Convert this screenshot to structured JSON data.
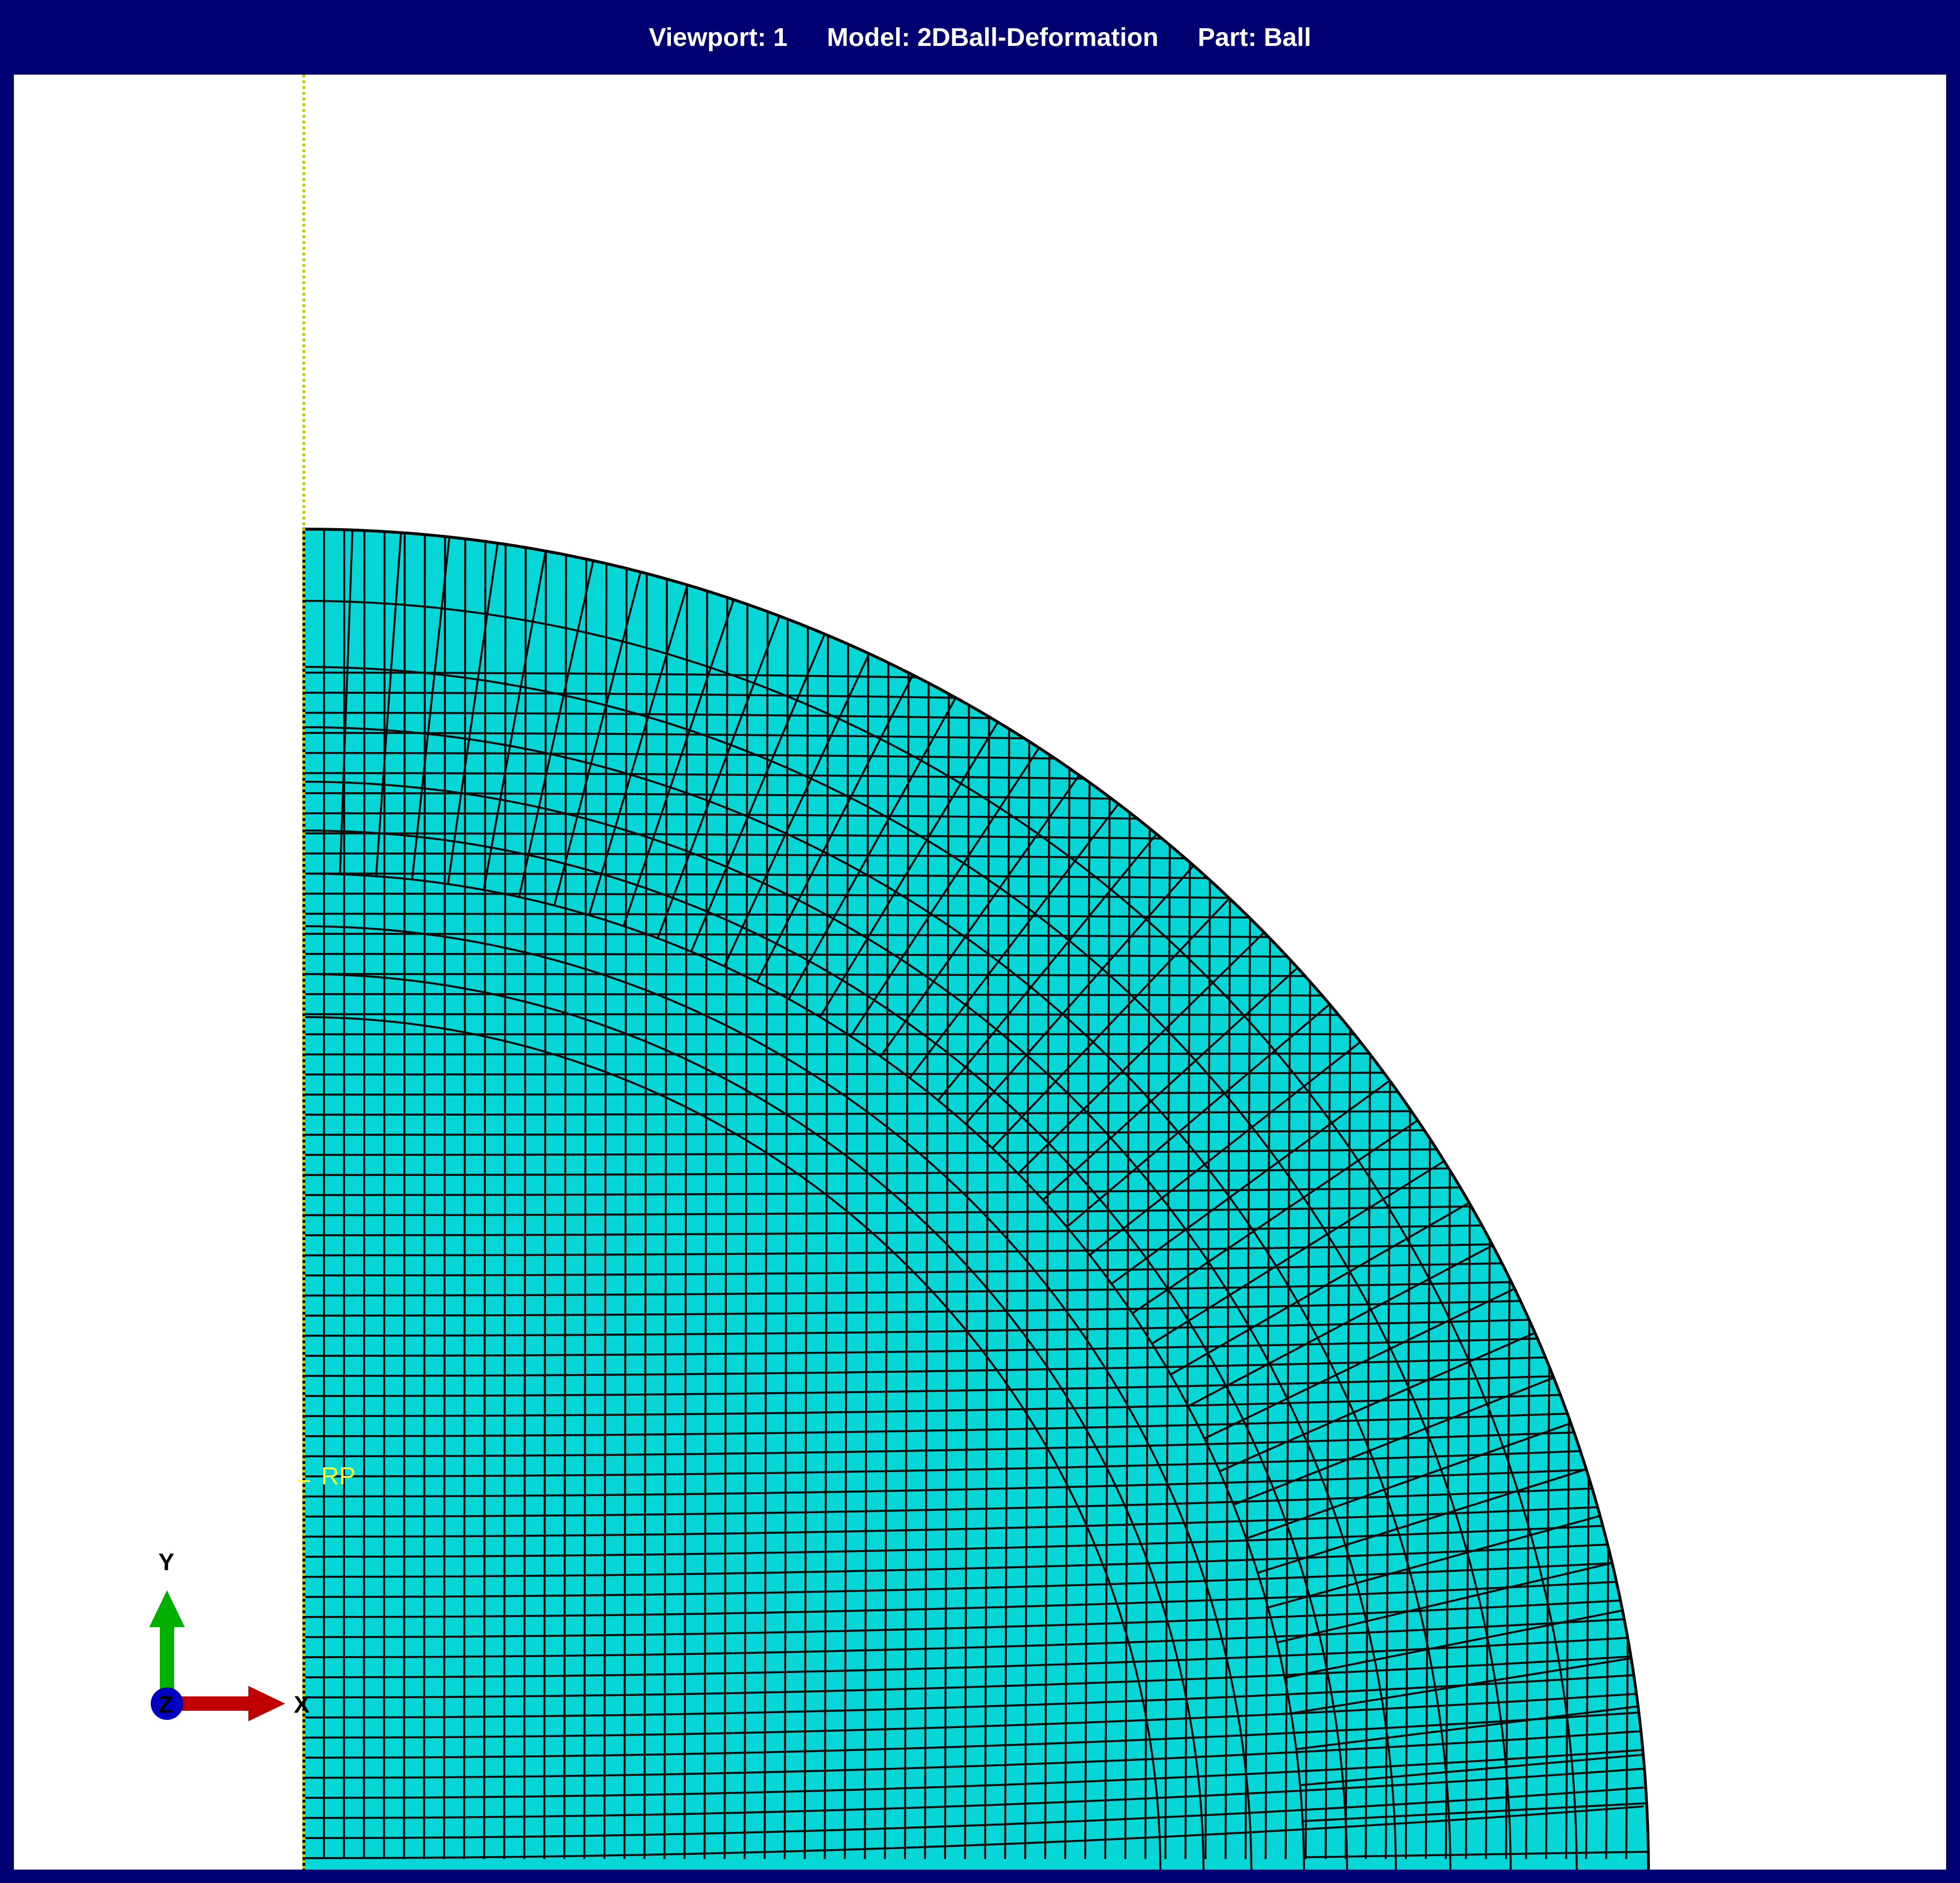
{
  "window": {
    "viewport_label": "Viewport: 1",
    "model_label": "Model: 2DBall-Deformation",
    "part_label": "Part: Ball"
  },
  "canvas": {
    "background_color": "#ffffff",
    "frame_color": "#000070",
    "part_fill_color": "#07d6d6",
    "mesh_line_color": "#000000",
    "axis_line_color": "#c8c800"
  },
  "reference_point": {
    "label": "RP",
    "color": "#ffff40"
  },
  "triad": {
    "x_label": "X",
    "y_label": "Y",
    "z_label": "Z",
    "x_color": "#c00000",
    "y_color": "#00b000",
    "z_color": "#0000c0"
  }
}
